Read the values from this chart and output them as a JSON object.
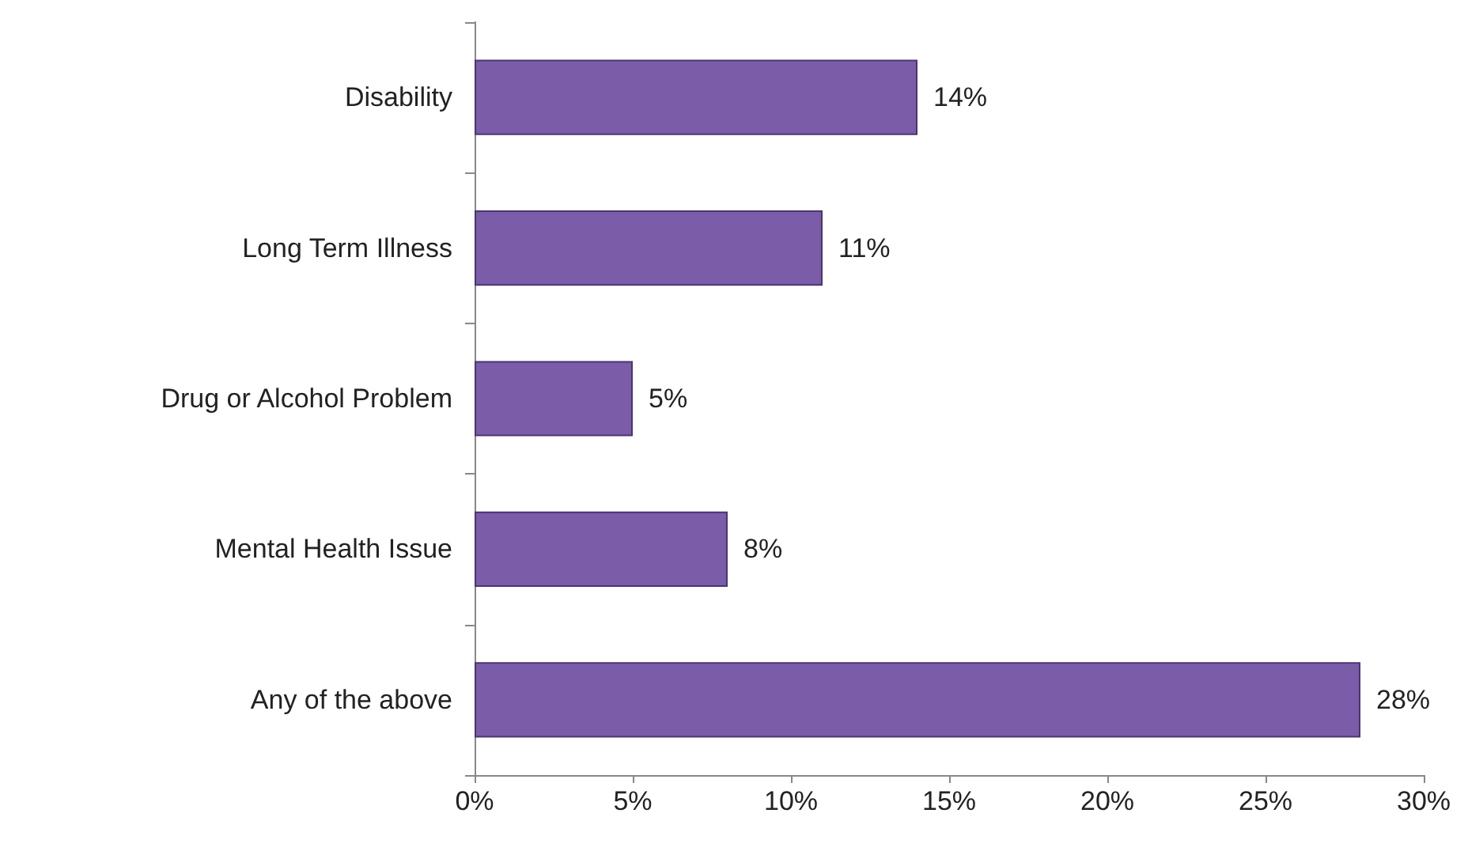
{
  "chart_data": {
    "type": "bar",
    "orientation": "horizontal",
    "categories": [
      "Disability",
      "Long Term Illness",
      "Drug or Alcohol Problem",
      "Mental Health Issue",
      "Any of the above"
    ],
    "values": [
      14,
      11,
      5,
      8,
      28
    ],
    "value_labels": [
      "14%",
      "11%",
      "5%",
      "8%",
      "28%"
    ],
    "color": "#7b5ca8",
    "xlim": [
      0,
      30
    ],
    "xticks": [
      {
        "value": 0,
        "label": "0%"
      },
      {
        "value": 5,
        "label": "5%"
      },
      {
        "value": 10,
        "label": "10%"
      },
      {
        "value": 15,
        "label": "15%"
      },
      {
        "value": 20,
        "label": "20%"
      },
      {
        "value": 25,
        "label": "25%"
      },
      {
        "value": 30,
        "label": "30%"
      }
    ],
    "grid": false
  }
}
